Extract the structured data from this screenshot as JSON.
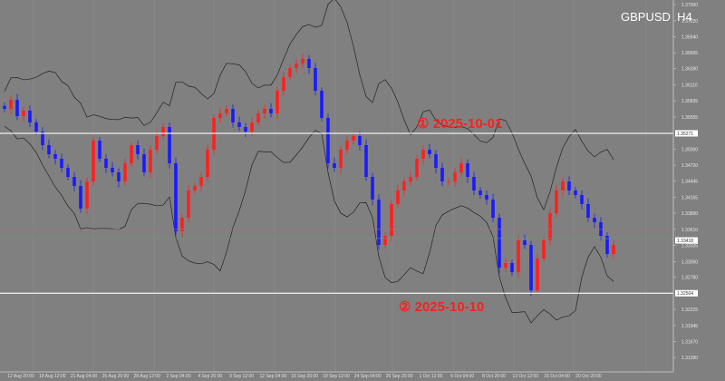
{
  "chart_data": {
    "type": "candlestick",
    "title": "GBPUSD  H4",
    "symbol": "GBPUSD",
    "timeframe": "H4",
    "ylim": [
      1.31142,
      1.37579
    ],
    "y_ticks": [
      "1.37500",
      "1.37220",
      "1.36940",
      "1.36665",
      "1.36390",
      "1.36110",
      "1.35835",
      "1.35555",
      "1.35000",
      "1.34720",
      "1.34445",
      "1.34165",
      "1.33890",
      "1.33610",
      "1.33335",
      "1.33050",
      "1.32780",
      "1.32225",
      "1.31945",
      "1.31670",
      "1.31390"
    ],
    "x_ticks": [
      "12 Aug 20:00",
      "18 Aug 12:00",
      "21 Aug 04:00",
      "25 Aug 20:00",
      "28 Aug 12:00",
      "2 Sep 04:00",
      "4 Sep 20:00",
      "9 Sep 12:00",
      "12 Sep 04:00",
      "16 Sep 20:00",
      "19 Sep 12:00",
      "24 Sep 04:00",
      "26 Sep 20:00",
      "1 Oct 12:00",
      "6 Oct 04:00",
      "8 Oct 20:00",
      "13 Oct 12:00",
      "16 Oct 04:00",
      "20 Oct 20:00"
    ],
    "closes": [
      1.35695,
      1.35852,
      1.35569,
      1.35664,
      1.3546,
      1.35302,
      1.35067,
      1.3491,
      1.34832,
      1.34674,
      1.34517,
      1.3436,
      1.33969,
      1.34439,
      1.35145,
      1.34832,
      1.34674,
      1.34596,
      1.34439,
      1.34753,
      1.35067,
      1.3491,
      1.34596,
      1.34989,
      1.35224,
      1.35381,
      1.34753,
      1.33576,
      1.33811,
      1.34282,
      1.3436,
      1.34517,
      1.34989,
      1.35538,
      1.35617,
      1.35695,
      1.3546,
      1.35381,
      1.35302,
      1.3546,
      1.35617,
      1.35695,
      1.35617,
      1.36009,
      1.36244,
      1.36402,
      1.3648,
      1.36559,
      1.36402,
      1.36009,
      1.35538,
      1.34753,
      1.34674,
      1.34989,
      1.35145,
      1.35224,
      1.35067,
      1.34517,
      1.34125,
      1.3334,
      1.33497,
      1.34047,
      1.34282,
      1.34439,
      1.34517,
      1.34832,
      1.34989,
      1.3491,
      1.34674,
      1.34439,
      1.34439,
      1.34596,
      1.34753,
      1.34517,
      1.34282,
      1.34204,
      1.34125,
      1.33811,
      1.32948,
      1.33026,
      1.32869,
      1.33419,
      1.3334,
      1.32555,
      1.33105,
      1.33419,
      1.3389,
      1.34282,
      1.34439,
      1.34282,
      1.34204,
      1.34047,
      1.33811,
      1.33733,
      1.33497,
      1.33183,
      1.3334
    ],
    "indicator": "Bollinger Bands",
    "current_price": "1.33418",
    "horizontal_lines": [
      {
        "price": "1.35271",
        "label": "① 2025-10-01"
      },
      {
        "price": "1.32504",
        "label": "② 2025-10-10"
      }
    ],
    "colors": {
      "background": "#808080",
      "bull": "#ff2020",
      "bear": "#1a1aff",
      "bands": "#222222",
      "hline": "#f0f0f0",
      "annotation": "#ff1e1e"
    }
  }
}
